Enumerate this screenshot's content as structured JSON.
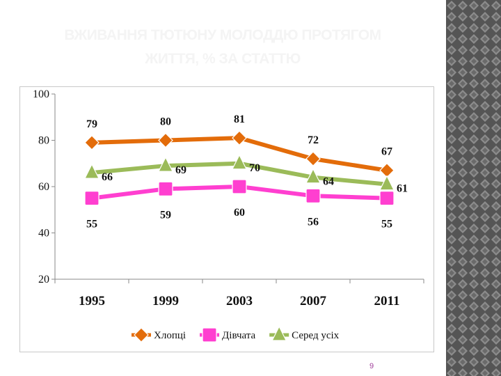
{
  "slide": {
    "title_line1": "ВЖИВАННЯ ТЮТЮНУ МОЛОДДЮ ПРОТЯГОМ",
    "title_line2": "ЖИТТЯ, % ЗА СТАТТЮ",
    "page_number": "9"
  },
  "colors": {
    "boys": "#e36c0a",
    "girls": "#ff3fd0",
    "all": "#9bbb59",
    "title": "#f4f4f4"
  },
  "chart_data": {
    "type": "line",
    "title": "",
    "xlabel": "",
    "ylabel": "",
    "categories": [
      "1995",
      "1999",
      "2003",
      "2007",
      "2011"
    ],
    "ylim": [
      20,
      100
    ],
    "yticks": [
      "100",
      "80",
      "60",
      "40",
      "20"
    ],
    "legend_position": "bottom",
    "series": [
      {
        "name": "Хлопці",
        "values": [
          79,
          80,
          81,
          72,
          67
        ],
        "labels": [
          "79",
          "80",
          "81",
          "72",
          "67"
        ],
        "marker": "diamond"
      },
      {
        "name": "Дівчата",
        "values": [
          55,
          59,
          60,
          56,
          55
        ],
        "labels": [
          "55",
          "59",
          "60",
          "56",
          "55"
        ],
        "marker": "square"
      },
      {
        "name": "Серед усіх",
        "values": [
          66,
          69,
          70,
          64,
          61
        ],
        "labels": [
          "66",
          "69",
          "70",
          "64",
          "61"
        ],
        "marker": "triangle"
      }
    ]
  }
}
